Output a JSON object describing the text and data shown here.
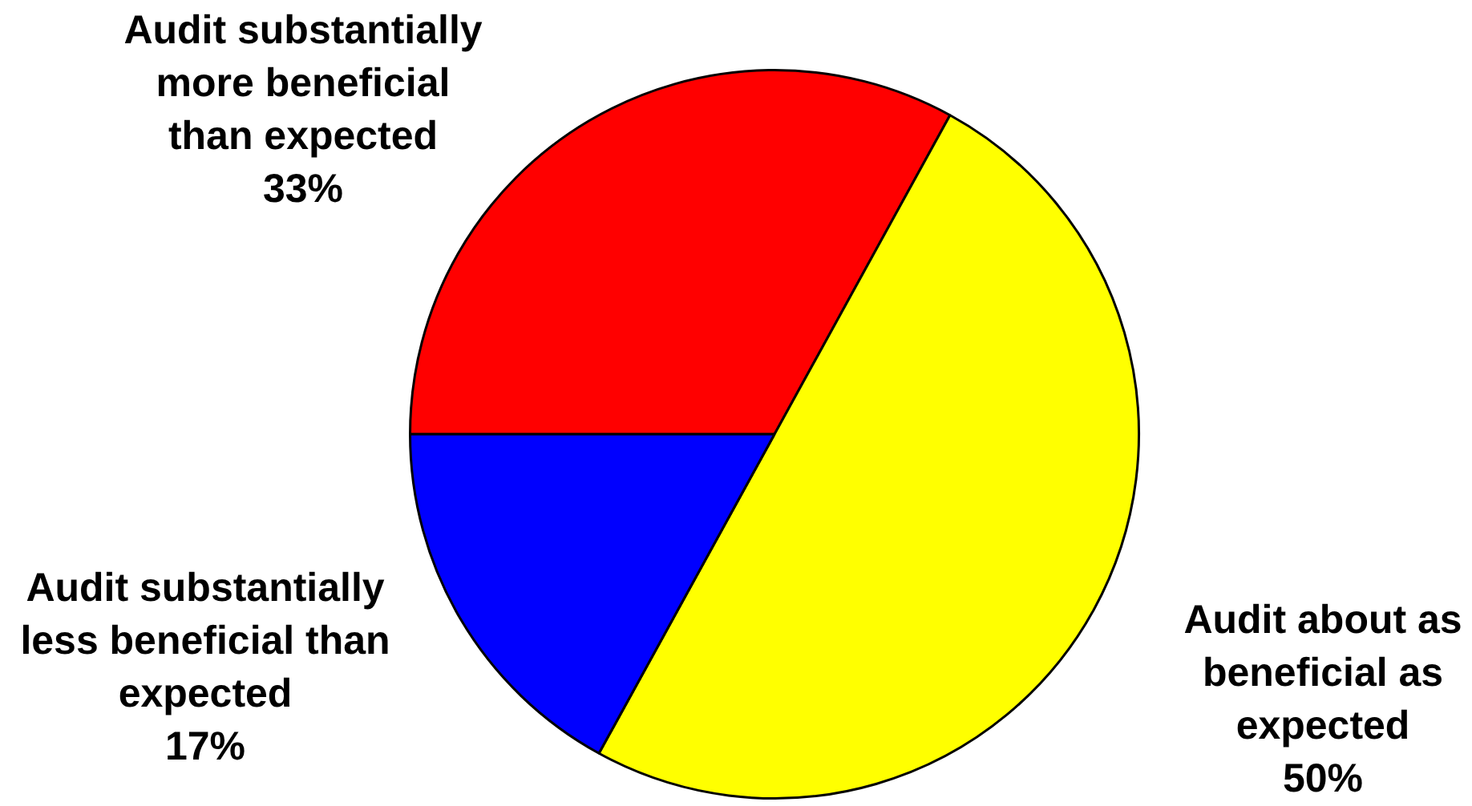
{
  "chart_data": {
    "type": "pie",
    "categories": [
      "Audit substantially more beneficial than expected",
      "Audit about as beneficial as expected",
      "Audit substantially less beneficial than expected"
    ],
    "values": [
      33,
      50,
      17
    ],
    "colors": [
      "#ff0000",
      "#ffff00",
      "#0000ff"
    ],
    "value_labels": [
      "33%",
      "50%",
      "17%"
    ],
    "legend": false
  }
}
